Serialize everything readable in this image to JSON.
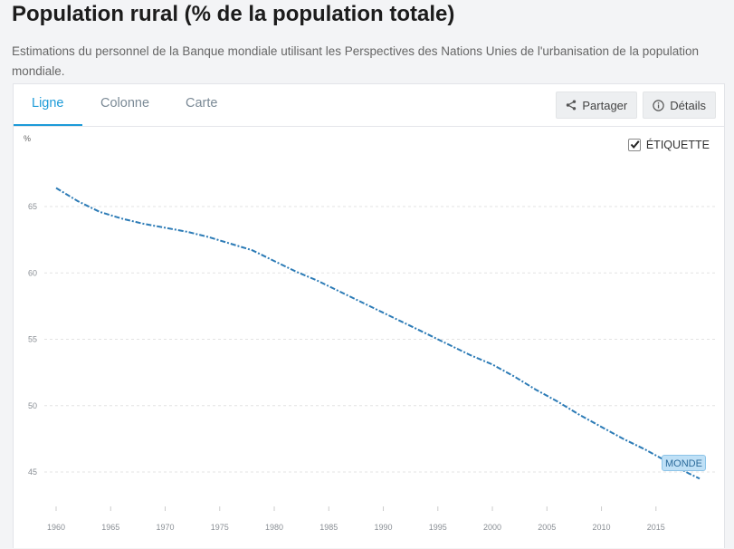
{
  "page": {
    "title": "Population rural (% de la population totale)",
    "subtitle": "Estimations du personnel de la Banque mondiale utilisant les Perspectives des Nations Unies de l'urbanisation de la population mondiale."
  },
  "tabs": [
    {
      "label": "Ligne",
      "active": true
    },
    {
      "label": "Colonne",
      "active": false
    },
    {
      "label": "Carte",
      "active": false
    }
  ],
  "actions": {
    "share_label": "Partager",
    "share_icon": "share-icon",
    "details_label": "Détails",
    "details_icon": "info-icon"
  },
  "label_toggle": {
    "label": "ÉTIQUETTE",
    "checked": true
  },
  "colors": {
    "accent": "#1d9bd8",
    "series": "#2c7bb6"
  },
  "chart_data": {
    "type": "line",
    "title": "",
    "xlabel": "",
    "ylabel": "%",
    "xlim": [
      1960,
      2019
    ],
    "ylim": [
      42,
      70
    ],
    "x_ticks": [
      1960,
      1965,
      1970,
      1975,
      1980,
      1985,
      1990,
      1995,
      2000,
      2005,
      2010,
      2015
    ],
    "y_ticks": [
      45,
      50,
      55,
      60,
      65
    ],
    "grid": true,
    "legend": "none",
    "series": [
      {
        "name": "MONDE",
        "x": [
          1960,
          1962,
          1964,
          1966,
          1968,
          1970,
          1972,
          1974,
          1976,
          1978,
          1980,
          1982,
          1984,
          1986,
          1988,
          1990,
          1992,
          1994,
          1996,
          1998,
          2000,
          2002,
          2004,
          2006,
          2008,
          2010,
          2012,
          2014,
          2016,
          2018,
          2019
        ],
        "y": [
          66.4,
          65.4,
          64.6,
          64.1,
          63.7,
          63.4,
          63.1,
          62.7,
          62.2,
          61.7,
          60.9,
          60.1,
          59.4,
          58.6,
          57.8,
          57.0,
          56.2,
          55.4,
          54.6,
          53.8,
          53.1,
          52.2,
          51.2,
          50.3,
          49.3,
          48.4,
          47.5,
          46.7,
          45.8,
          44.9,
          44.5
        ]
      }
    ]
  }
}
